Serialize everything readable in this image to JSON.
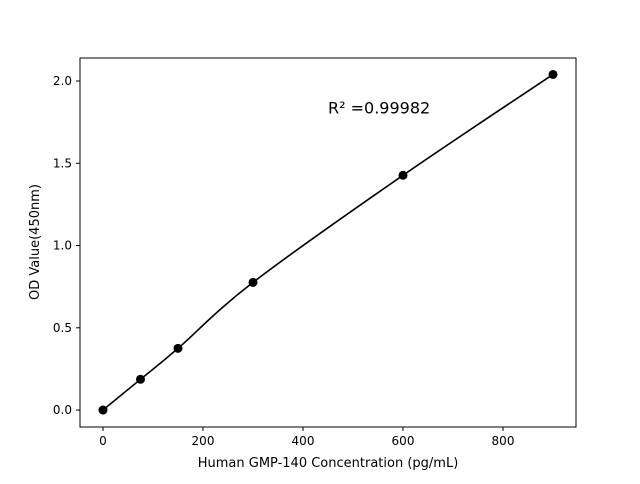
{
  "chart_data": {
    "type": "scatter",
    "title": "",
    "xlabel": "Human GMP-140 Concentration (pg/mL)",
    "ylabel": "OD Value(450nm)",
    "xlim": [
      -46,
      946
    ],
    "ylim": [
      -0.103,
      2.14
    ],
    "xticks": [
      0,
      200,
      400,
      600,
      800
    ],
    "xtick_labels": [
      "0",
      "200",
      "400",
      "600",
      "800"
    ],
    "yticks": [
      0.0,
      0.5,
      1.0,
      1.5,
      2.0
    ],
    "ytick_labels": [
      "0.0",
      "0.5",
      "1.0",
      "1.5",
      "2.0"
    ],
    "grid": false,
    "series": [
      {
        "x": [
          0,
          75,
          150,
          300,
          600,
          900
        ],
        "y": [
          0.0,
          0.187,
          0.375,
          0.776,
          1.427,
          2.04
        ],
        "marker": "circle",
        "line": "smooth fit",
        "color": "#000000"
      }
    ],
    "annotations": [
      {
        "text": "R² =0.99982",
        "x": 450,
        "y": 1.84
      }
    ]
  }
}
